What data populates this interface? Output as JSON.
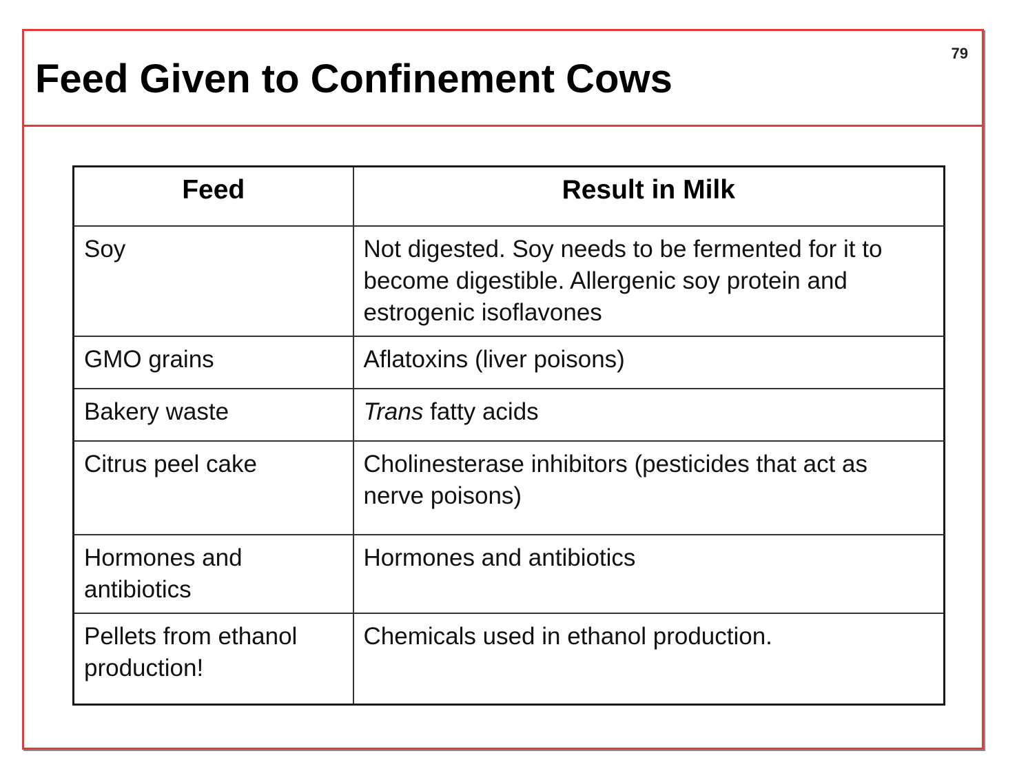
{
  "slide": {
    "title": "Feed Given to Confinement Cows",
    "page_number": "79"
  },
  "table": {
    "headers": {
      "feed": "Feed",
      "result": "Result in Milk"
    },
    "rows": [
      {
        "feed": "Soy",
        "result": "Not digested. Soy needs to be fermented for it to become digestible. Allergenic soy protein and estrogenic isoflavones"
      },
      {
        "feed": "GMO grains",
        "result": "Aflatoxins (liver poisons)"
      },
      {
        "feed": "Bakery waste",
        "result_italic": "Trans",
        "result_rest": " fatty acids"
      },
      {
        "feed": "Citrus peel cake",
        "result": "Cholinesterase inhibitors (pesticides that act as nerve poisons)"
      },
      {
        "feed": "Hormones and antibiotics",
        "result": "Hormones and antibiotics"
      },
      {
        "feed": "Pellets from ethanol production!",
        "result": "Chemicals used in ethanol production."
      }
    ]
  },
  "colors": {
    "frame_border": "#e23a3a",
    "table_border": "#333333",
    "text": "#000000"
  }
}
